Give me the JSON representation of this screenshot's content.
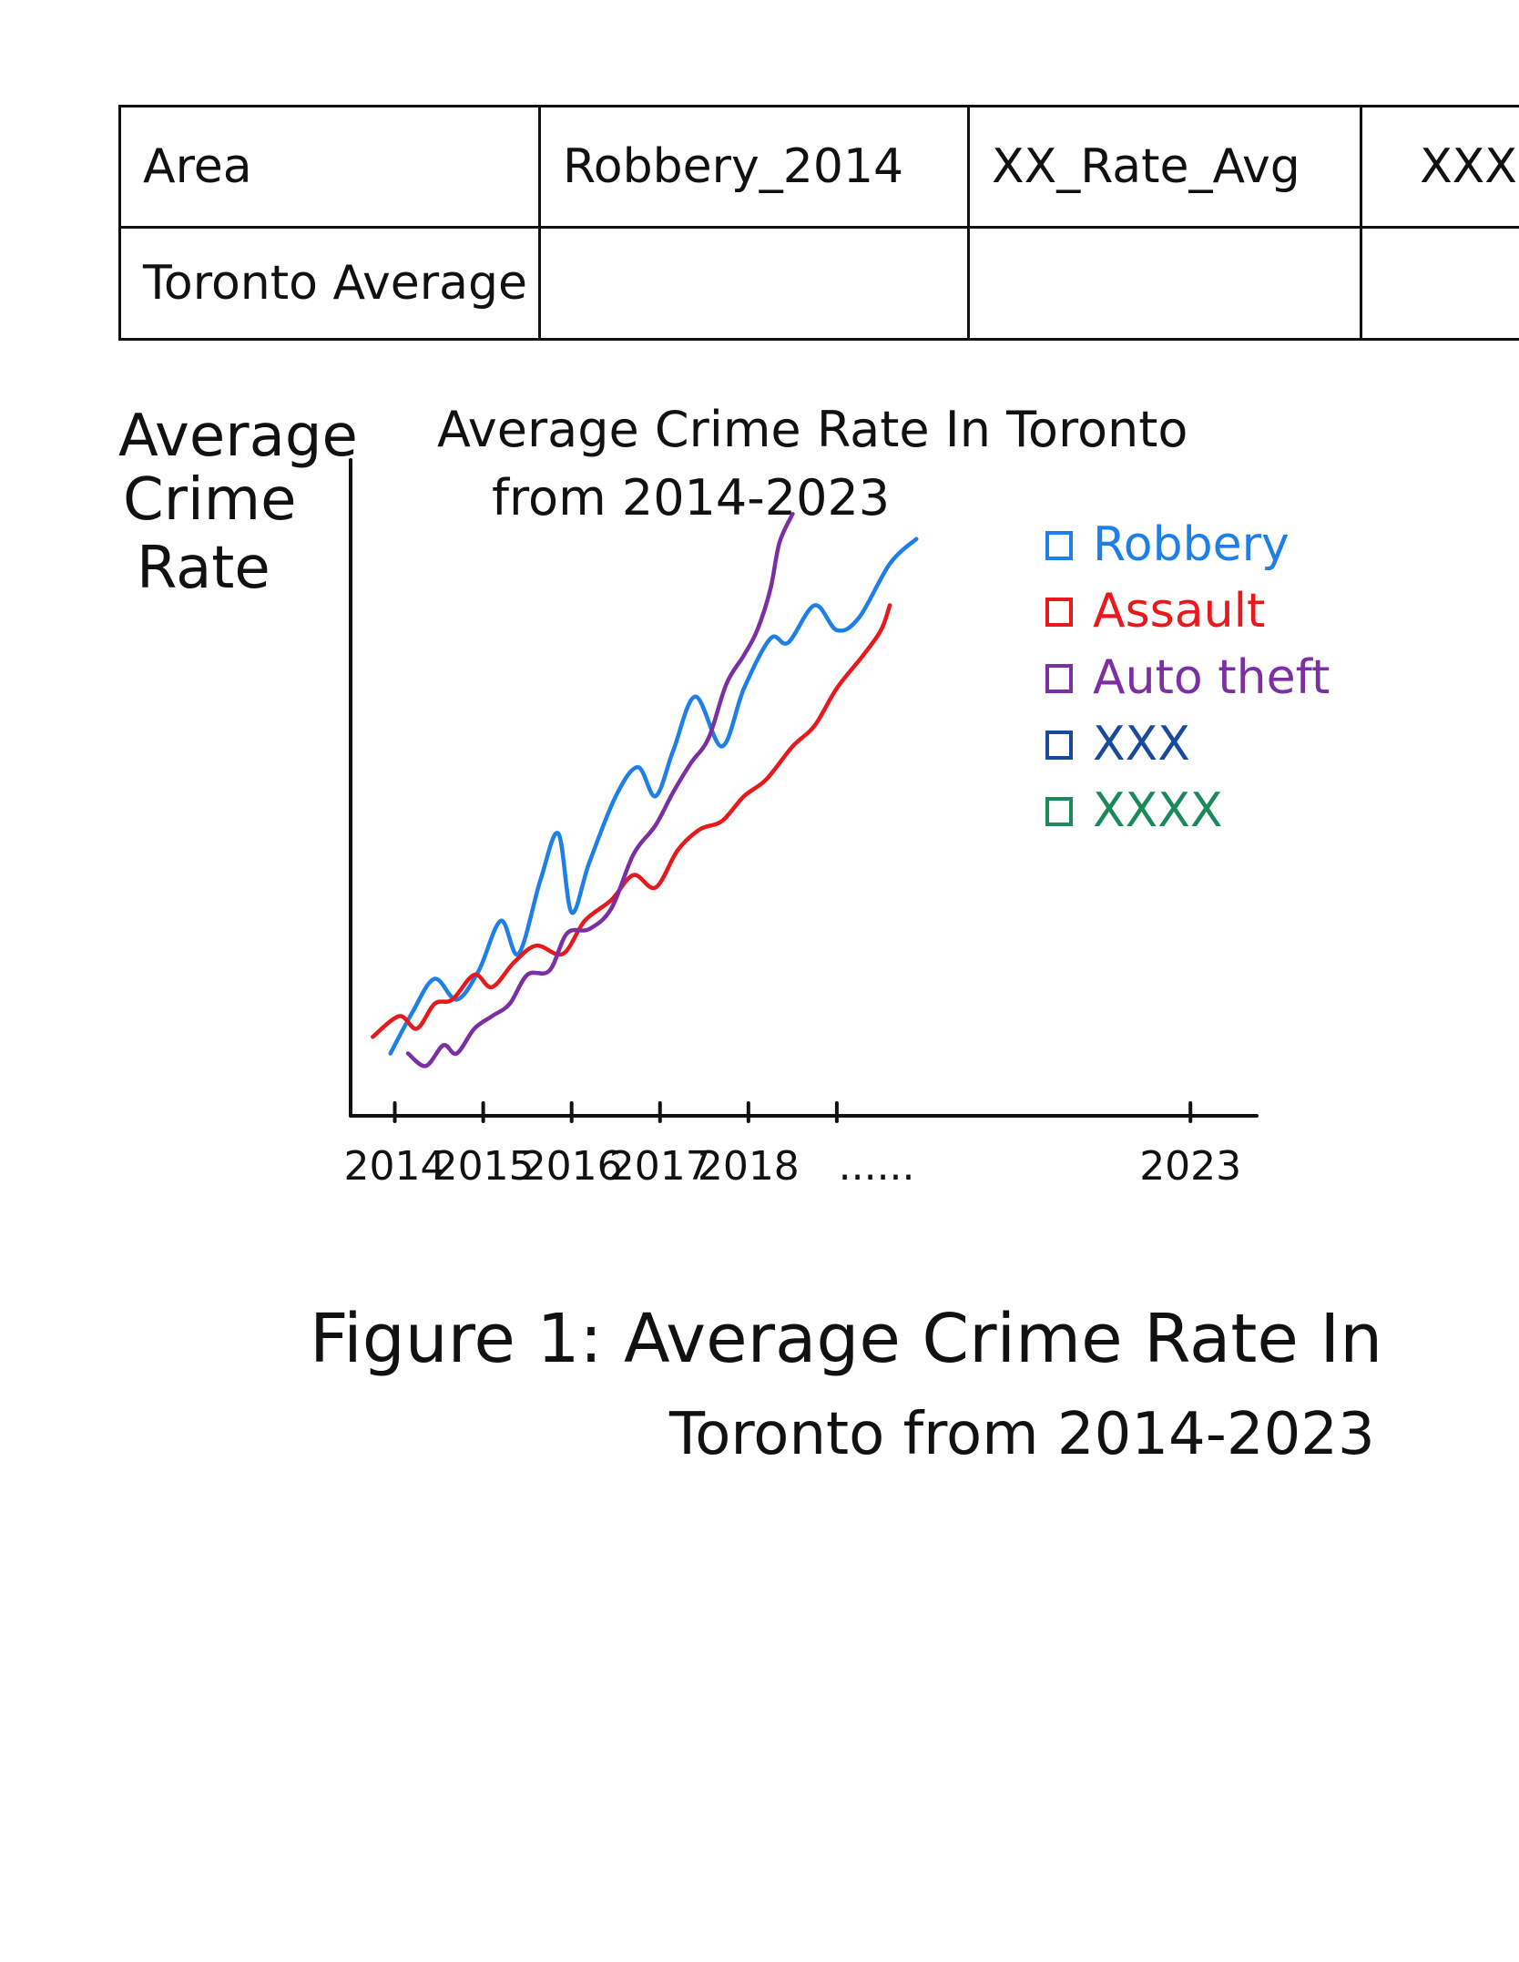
{
  "table": {
    "headers": [
      "Area",
      "Robbery_2014",
      "XX_Rate_Avg",
      "XXX"
    ],
    "rows": [
      [
        "Toronto Average",
        "",
        "",
        ""
      ]
    ]
  },
  "chart_data": {
    "type": "line",
    "title": [
      "Average Crime Rate In Toronto",
      "from 2014-2023"
    ],
    "ylabel": [
      "Average",
      "Crime",
      "Rate"
    ],
    "xlabel": "",
    "x_tick_labels": [
      "2014",
      "2015",
      "2016",
      "2017",
      "2018",
      "......",
      "2023"
    ],
    "legend_position": "right",
    "grid": false,
    "series": [
      {
        "name": "Robbery",
        "color": "#1e7fe6",
        "x": [
          2013.95,
          2014.2,
          2014.45,
          2014.7,
          2014.95,
          2015.2,
          2015.4,
          2015.65,
          2015.85,
          2016.0,
          2016.2,
          2016.5,
          2016.75,
          2016.95,
          2017.15,
          2017.4,
          2017.7,
          2017.95,
          2018.25,
          2018.45,
          2018.75,
          2019.0,
          2019.25,
          2019.6,
          2019.9
        ],
        "y": [
          1.0,
          2.0,
          2.8,
          2.3,
          3.0,
          4.2,
          3.4,
          5.2,
          6.3,
          4.4,
          5.6,
          7.2,
          7.9,
          7.2,
          8.3,
          9.6,
          8.4,
          9.8,
          11.0,
          10.9,
          11.8,
          11.2,
          11.5,
          12.8,
          13.4
        ]
      },
      {
        "name": "Assault",
        "color": "#e8191c",
        "x": [
          2013.75,
          2014.05,
          2014.25,
          2014.45,
          2014.65,
          2014.9,
          2015.1,
          2015.35,
          2015.6,
          2015.9,
          2016.15,
          2016.45,
          2016.7,
          2016.95,
          2017.2,
          2017.45,
          2017.7,
          2017.95,
          2018.2,
          2018.5,
          2018.75,
          2019.0,
          2019.3,
          2019.5,
          2019.6
        ],
        "y": [
          1.4,
          1.9,
          1.6,
          2.2,
          2.3,
          2.9,
          2.6,
          3.2,
          3.6,
          3.4,
          4.2,
          4.7,
          5.3,
          5.0,
          5.9,
          6.4,
          6.6,
          7.2,
          7.6,
          8.4,
          8.9,
          9.8,
          10.6,
          11.2,
          11.8
        ]
      },
      {
        "name": "Auto theft",
        "color": "#7b2fa3",
        "x": [
          2014.15,
          2014.35,
          2014.55,
          2014.7,
          2014.9,
          2015.1,
          2015.3,
          2015.5,
          2015.75,
          2015.95,
          2016.2,
          2016.45,
          2016.7,
          2016.95,
          2017.15,
          2017.35,
          2017.55,
          2017.75,
          2017.95,
          2018.1,
          2018.25,
          2018.35,
          2018.5
        ],
        "y": [
          1.0,
          0.7,
          1.2,
          1.0,
          1.6,
          1.9,
          2.2,
          2.9,
          3.0,
          3.9,
          4.0,
          4.5,
          5.8,
          6.5,
          7.3,
          8.0,
          8.6,
          9.9,
          10.6,
          11.2,
          12.2,
          13.3,
          14.0
        ]
      },
      {
        "name": "XXX",
        "color": "#1a4a9c",
        "x": [],
        "y": []
      },
      {
        "name": "XXXX",
        "color": "#1a8a5a",
        "x": [],
        "y": []
      }
    ],
    "xlim": [
      2013.5,
      2023.75
    ],
    "ylim": [
      -0.5,
      15.3
    ]
  },
  "caption": {
    "line1": "Figure 1: Average Crime Rate In",
    "line2": "Toronto from 2014-2023"
  }
}
